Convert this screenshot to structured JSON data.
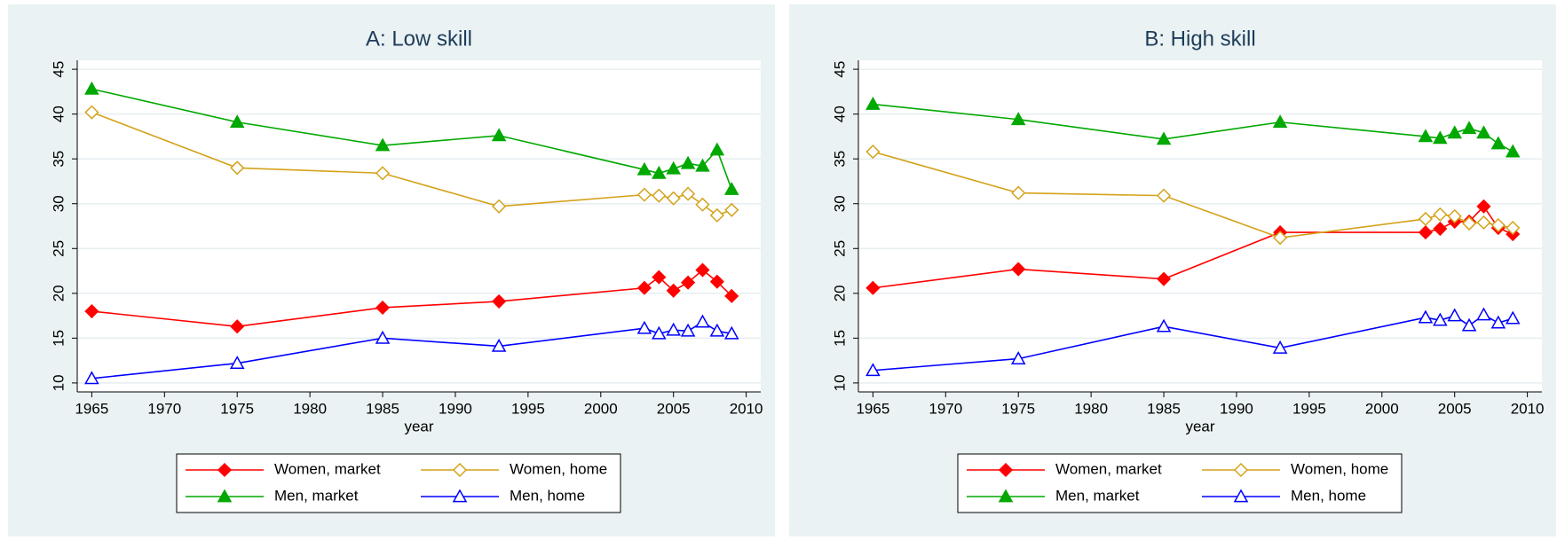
{
  "chart_data": [
    {
      "type": "line",
      "title": "A: Low skill",
      "x_label": "year",
      "x": [
        1965,
        1975,
        1985,
        1993,
        2003,
        2004,
        2005,
        2006,
        2007,
        2008,
        2009
      ],
      "xlim": [
        1964,
        2011
      ],
      "xticks": [
        1965,
        1970,
        1975,
        1980,
        1985,
        1990,
        1995,
        2000,
        2005,
        2010
      ],
      "ylim": [
        9,
        46
      ],
      "yticks": [
        10,
        15,
        20,
        25,
        30,
        35,
        40,
        45
      ],
      "grid": true,
      "legend": "bottom",
      "series": [
        {
          "name": "Women, market",
          "color": "#ff0000",
          "marker": "diamond",
          "filled": true,
          "values": [
            18.0,
            16.3,
            18.4,
            19.1,
            20.6,
            21.8,
            20.3,
            21.2,
            22.6,
            21.3,
            19.7
          ]
        },
        {
          "name": "Women, home",
          "color": "#d4a21a",
          "marker": "diamond",
          "filled": false,
          "values": [
            40.2,
            34.0,
            33.4,
            29.7,
            31.0,
            30.9,
            30.6,
            31.1,
            29.9,
            28.7,
            29.3
          ]
        },
        {
          "name": "Men, market",
          "color": "#00a800",
          "marker": "triangle",
          "filled": true,
          "values": [
            42.8,
            39.1,
            36.5,
            37.6,
            33.8,
            33.4,
            33.9,
            34.5,
            34.2,
            36.0,
            31.6
          ]
        },
        {
          "name": "Men, home",
          "color": "#0000ff",
          "marker": "triangle",
          "filled": false,
          "values": [
            10.5,
            12.2,
            15.0,
            14.1,
            16.1,
            15.5,
            15.9,
            15.8,
            16.8,
            15.8,
            15.5
          ]
        }
      ]
    },
    {
      "type": "line",
      "title": "B: High skill",
      "x_label": "year",
      "x": [
        1965,
        1975,
        1985,
        1993,
        2003,
        2004,
        2005,
        2006,
        2007,
        2008,
        2009
      ],
      "xlim": [
        1964,
        2011
      ],
      "xticks": [
        1965,
        1970,
        1975,
        1980,
        1985,
        1990,
        1995,
        2000,
        2005,
        2010
      ],
      "ylim": [
        9,
        46
      ],
      "yticks": [
        10,
        15,
        20,
        25,
        30,
        35,
        40,
        45
      ],
      "grid": true,
      "legend": "bottom",
      "series": [
        {
          "name": "Women, market",
          "color": "#ff0000",
          "marker": "diamond",
          "filled": true,
          "values": [
            20.6,
            22.7,
            21.6,
            26.8,
            26.8,
            27.2,
            28.0,
            28.0,
            29.7,
            27.3,
            26.6
          ]
        },
        {
          "name": "Women, home",
          "color": "#d4a21a",
          "marker": "diamond",
          "filled": false,
          "values": [
            35.8,
            31.2,
            30.9,
            26.2,
            28.3,
            28.8,
            28.6,
            27.8,
            27.9,
            27.6,
            27.3
          ]
        },
        {
          "name": "Men, market",
          "color": "#00a800",
          "marker": "triangle",
          "filled": true,
          "values": [
            41.1,
            39.4,
            37.2,
            39.1,
            37.5,
            37.3,
            37.9,
            38.4,
            37.9,
            36.7,
            35.8
          ]
        },
        {
          "name": "Men, home",
          "color": "#0000ff",
          "marker": "triangle",
          "filled": false,
          "values": [
            11.4,
            12.7,
            16.3,
            13.9,
            17.3,
            17.0,
            17.5,
            16.4,
            17.6,
            16.7,
            17.2
          ]
        }
      ]
    }
  ]
}
